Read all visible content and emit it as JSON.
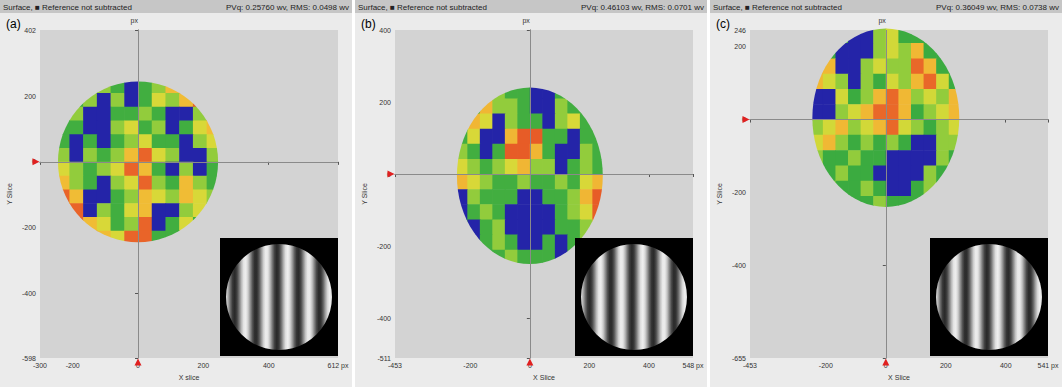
{
  "chart_data": [
    {
      "type": "heatmap",
      "panel_label": "(a)",
      "header_left": "Surface, ■ Reference not subtracted",
      "header_right": "PVq: 0.25760 wv, RMS: 0.0498 wv",
      "x_label": "X slice",
      "y_label": "Y Slice",
      "y_unit": "px",
      "xlim": [
        -300,
        612
      ],
      "xticks": [
        -300,
        -200,
        0,
        200,
        400,
        {
          "value": 612,
          "label": "612 px"
        }
      ],
      "ylim": [
        -598,
        402
      ],
      "yticks": [
        -598,
        -400,
        -200,
        0,
        200,
        402
      ],
      "slice": [
        0,
        0
      ],
      "aperture": {
        "center": [
          0,
          0
        ],
        "radius": 245
      },
      "surface": {
        "x": [
          -231,
          -189,
          -147,
          -105,
          -63,
          -21,
          21,
          63,
          105,
          147,
          189,
          231
        ],
        "y": [
          231,
          189,
          147,
          105,
          63,
          21,
          -21,
          -63,
          -105,
          -147,
          -189,
          -231
        ],
        "zlim": [
          0,
          0.26
        ],
        "z": [
          [
            0.09,
            0.09,
            0.09,
            0.13,
            0.09,
            0.02,
            0.09,
            0.13,
            0.2,
            0.24,
            0.09,
            0.09
          ],
          [
            0.09,
            0.09,
            0.13,
            0.02,
            0.13,
            0.02,
            0.09,
            0.17,
            0.13,
            0.2,
            0.24,
            0.09
          ],
          [
            0.09,
            0.13,
            0.02,
            0.02,
            0.09,
            0.09,
            0.13,
            0.09,
            0.02,
            0.02,
            0.13,
            0.24
          ],
          [
            0.09,
            0.09,
            0.02,
            0.02,
            0.13,
            0.17,
            0.09,
            0.13,
            0.02,
            0.09,
            0.17,
            0.2
          ],
          [
            0.09,
            0.02,
            0.09,
            0.02,
            0.09,
            0.13,
            0.17,
            0.09,
            0.09,
            0.02,
            0.13,
            0.17
          ],
          [
            0.13,
            0.02,
            0.13,
            0.09,
            0.13,
            0.2,
            0.24,
            0.17,
            0.13,
            0.02,
            0.02,
            0.13
          ],
          [
            0.17,
            0.13,
            0.09,
            0.13,
            0.17,
            0.24,
            0.2,
            0.09,
            0.02,
            0.13,
            0.02,
            0.09
          ],
          [
            0.2,
            0.13,
            0.09,
            0.02,
            0.13,
            0.17,
            0.24,
            0.13,
            0.09,
            0.2,
            0.13,
            0.09
          ],
          [
            0.24,
            0.2,
            0.02,
            0.02,
            0.09,
            0.13,
            0.2,
            0.17,
            0.13,
            0.2,
            0.17,
            0.13
          ],
          [
            0.2,
            0.24,
            0.02,
            0.13,
            0.09,
            0.17,
            0.2,
            0.02,
            0.02,
            0.13,
            0.17,
            0.09
          ],
          [
            0.13,
            0.24,
            0.2,
            0.17,
            0.09,
            0.13,
            0.24,
            0.02,
            0.09,
            0.17,
            0.09,
            0.09
          ],
          [
            0.09,
            0.2,
            0.24,
            0.2,
            0.17,
            0.24,
            0.24,
            0.09,
            0.09,
            0.13,
            0.09,
            0.09
          ]
        ]
      }
    },
    {
      "type": "heatmap",
      "panel_label": "(b)",
      "header_left": "Surface, ■ Reference not subtracted",
      "header_right": "PVq: 0.46103 wv, RMS: 0.0701 wv",
      "x_label": "X Slice",
      "y_label": "Y Slice",
      "y_unit": "px",
      "xlim": [
        -453,
        548
      ],
      "xticks": [
        -453,
        -200,
        0,
        200,
        400,
        {
          "value": 548,
          "label": "548 px"
        }
      ],
      "ylim": [
        -511,
        400
      ],
      "yticks": [
        -511,
        -400,
        -200,
        0,
        200,
        400
      ],
      "slice": [
        0,
        0
      ],
      "aperture": {
        "center": [
          0,
          -5
        ],
        "radius": 245
      },
      "surface": {
        "x": [
          -231,
          -189,
          -147,
          -105,
          -63,
          -21,
          21,
          63,
          105,
          147,
          189,
          231
        ],
        "y": [
          231,
          189,
          147,
          105,
          63,
          21,
          -21,
          -63,
          -105,
          -147,
          -189,
          -231
        ],
        "zlim": [
          0,
          0.46
        ],
        "z": [
          [
            0.16,
            0.16,
            0.16,
            0.23,
            0.16,
            0.16,
            0.03,
            0.03,
            0.16,
            0.16,
            0.16,
            0.16
          ],
          [
            0.16,
            0.16,
            0.36,
            0.23,
            0.23,
            0.16,
            0.03,
            0.03,
            0.23,
            0.16,
            0.16,
            0.16
          ],
          [
            0.16,
            0.36,
            0.3,
            0.03,
            0.23,
            0.16,
            0.16,
            0.03,
            0.23,
            0.3,
            0.16,
            0.16
          ],
          [
            0.16,
            0.3,
            0.03,
            0.03,
            0.36,
            0.43,
            0.43,
            0.16,
            0.16,
            0.03,
            0.16,
            0.16
          ],
          [
            0.23,
            0.16,
            0.03,
            0.16,
            0.43,
            0.43,
            0.36,
            0.16,
            0.03,
            0.03,
            0.23,
            0.16
          ],
          [
            0.3,
            0.23,
            0.16,
            0.23,
            0.3,
            0.36,
            0.23,
            0.23,
            0.03,
            0.16,
            0.23,
            0.16
          ],
          [
            0.36,
            0.3,
            0.23,
            0.16,
            0.16,
            0.23,
            0.16,
            0.16,
            0.23,
            0.16,
            0.3,
            0.36
          ],
          [
            0.03,
            0.23,
            0.16,
            0.16,
            0.16,
            0.03,
            0.03,
            0.16,
            0.16,
            0.23,
            0.36,
            0.43
          ],
          [
            0.03,
            0.16,
            0.23,
            0.16,
            0.03,
            0.03,
            0.03,
            0.03,
            0.16,
            0.23,
            0.3,
            0.43
          ],
          [
            0.16,
            0.03,
            0.16,
            0.23,
            0.03,
            0.03,
            0.03,
            0.03,
            0.16,
            0.16,
            0.23,
            0.36
          ],
          [
            0.16,
            0.03,
            0.16,
            0.23,
            0.16,
            0.03,
            0.03,
            0.16,
            0.03,
            0.16,
            0.23,
            0.16
          ],
          [
            0.16,
            0.16,
            0.16,
            0.16,
            0.23,
            0.16,
            0.16,
            0.16,
            0.03,
            0.16,
            0.16,
            0.16
          ]
        ]
      }
    },
    {
      "type": "heatmap",
      "panel_label": "(c)",
      "header_left": "Surface, ■ Reference not subtracted",
      "header_right": "PVq: 0.36049 wv, RMS: 0.0738 wv",
      "x_label": "X Slice",
      "y_label": "Y Slice",
      "y_unit": "px",
      "xlim": [
        -453,
        541
      ],
      "xticks": [
        -453,
        -200,
        0,
        200,
        400,
        {
          "value": 541,
          "label": "541 px"
        }
      ],
      "ylim": [
        -655,
        246
      ],
      "yticks": [
        -655,
        -400,
        -200,
        0,
        200,
        246
      ],
      "slice": [
        0,
        0
      ],
      "aperture": {
        "center": [
          0,
          5
        ],
        "radius": 245
      },
      "surface": {
        "x": [
          -231,
          -189,
          -147,
          -105,
          -63,
          -21,
          21,
          63,
          105,
          147,
          189,
          231
        ],
        "y": [
          231,
          189,
          147,
          105,
          63,
          21,
          -21,
          -63,
          -105,
          -147,
          -189,
          -231
        ],
        "zlim": [
          0,
          0.36
        ],
        "z": [
          [
            0.12,
            0.12,
            0.12,
            0.02,
            0.02,
            0.18,
            0.23,
            0.12,
            0.12,
            0.12,
            0.12,
            0.12
          ],
          [
            0.12,
            0.12,
            0.02,
            0.02,
            0.02,
            0.18,
            0.23,
            0.18,
            0.28,
            0.12,
            0.12,
            0.12
          ],
          [
            0.28,
            0.28,
            0.02,
            0.02,
            0.18,
            0.23,
            0.18,
            0.18,
            0.33,
            0.28,
            0.12,
            0.12
          ],
          [
            0.28,
            0.23,
            0.18,
            0.02,
            0.18,
            0.12,
            0.23,
            0.18,
            0.28,
            0.33,
            0.23,
            0.12
          ],
          [
            0.02,
            0.02,
            0.23,
            0.12,
            0.18,
            0.28,
            0.33,
            0.28,
            0.18,
            0.23,
            0.18,
            0.28
          ],
          [
            0.02,
            0.02,
            0.18,
            0.23,
            0.28,
            0.33,
            0.33,
            0.28,
            0.12,
            0.18,
            0.23,
            0.28
          ],
          [
            0.18,
            0.23,
            0.28,
            0.18,
            0.23,
            0.28,
            0.33,
            0.23,
            0.18,
            0.12,
            0.18,
            0.23
          ],
          [
            0.23,
            0.28,
            0.18,
            0.12,
            0.18,
            0.12,
            0.18,
            0.12,
            0.02,
            0.02,
            0.18,
            0.18
          ],
          [
            0.18,
            0.12,
            0.12,
            0.18,
            0.12,
            0.12,
            0.02,
            0.02,
            0.02,
            0.02,
            0.18,
            0.12
          ],
          [
            0.18,
            0.12,
            0.18,
            0.12,
            0.12,
            0.02,
            0.02,
            0.02,
            0.02,
            0.18,
            0.12,
            0.12
          ],
          [
            0.12,
            0.18,
            0.12,
            0.12,
            0.18,
            0.12,
            0.02,
            0.02,
            0.12,
            0.18,
            0.12,
            0.12
          ],
          [
            0.12,
            0.12,
            0.12,
            0.12,
            0.12,
            0.18,
            0.12,
            0.12,
            0.12,
            0.12,
            0.12,
            0.12
          ]
        ]
      }
    }
  ]
}
